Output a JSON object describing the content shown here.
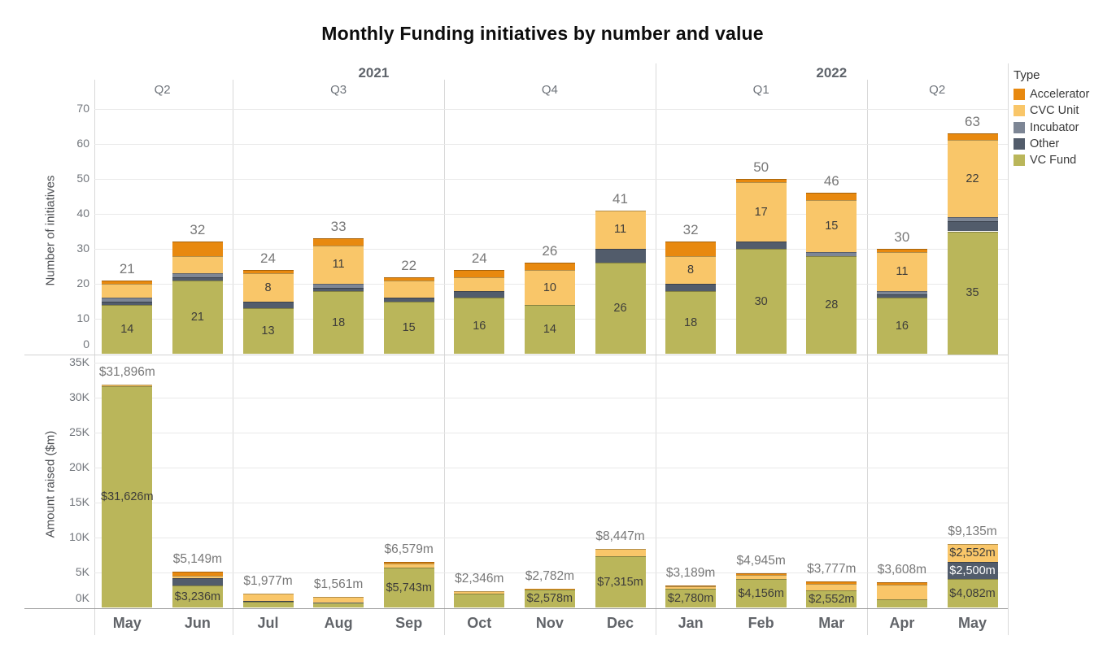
{
  "title": "Monthly Funding initiatives by number and value",
  "legend": {
    "title": "Type",
    "items": [
      {
        "label": "Accelerator",
        "color": "#E8890F"
      },
      {
        "label": "CVC Unit",
        "color": "#F9C669"
      },
      {
        "label": "Incubator",
        "color": "#7D8695"
      },
      {
        "label": "Other",
        "color": "#525C6B"
      },
      {
        "label": "VC Fund",
        "color": "#BAB65A"
      }
    ]
  },
  "x_axis": {
    "months": [
      "May",
      "Jun",
      "Jul",
      "Aug",
      "Sep",
      "Oct",
      "Nov",
      "Dec",
      "Jan",
      "Feb",
      "Mar",
      "Apr",
      "May"
    ],
    "quarters": [
      {
        "label": "Q2",
        "start": 0,
        "end": 2
      },
      {
        "label": "Q3",
        "start": 2,
        "end": 5
      },
      {
        "label": "Q4",
        "start": 5,
        "end": 8
      },
      {
        "label": "Q1",
        "start": 8,
        "end": 11
      },
      {
        "label": "Q2",
        "start": 11,
        "end": 13
      }
    ],
    "years": [
      {
        "label": "2021",
        "start": 0,
        "end": 8
      },
      {
        "label": "2022",
        "start": 8,
        "end": 13
      }
    ]
  },
  "chart_data": [
    {
      "type": "bar",
      "stacked": true,
      "stack_order": "bottom-to-top",
      "ylabel": "Number of initiatives",
      "ylim": [
        0,
        70
      ],
      "yticks": [
        0,
        10,
        20,
        30,
        40,
        50,
        60,
        70
      ],
      "ytick_labels": [
        "0",
        "10",
        "20",
        "30",
        "40",
        "50",
        "60",
        "70"
      ],
      "grid": true,
      "categories": [
        "May",
        "Jun",
        "Jul",
        "Aug",
        "Sep",
        "Oct",
        "Nov",
        "Dec",
        "Jan",
        "Feb",
        "Mar",
        "Apr",
        "May"
      ],
      "series": [
        {
          "name": "VC Fund",
          "values": [
            14,
            21,
            13,
            18,
            15,
            16,
            14,
            26,
            18,
            30,
            28,
            16,
            35
          ]
        },
        {
          "name": "Other",
          "values": [
            1,
            1,
            2,
            1,
            1,
            2,
            0,
            4,
            2,
            2,
            0,
            1,
            3
          ]
        },
        {
          "name": "Incubator",
          "values": [
            1,
            1,
            0,
            1,
            0,
            0,
            0,
            0,
            0,
            0,
            1,
            1,
            1
          ]
        },
        {
          "name": "CVC Unit",
          "values": [
            4,
            5,
            8,
            11,
            5,
            4,
            10,
            11,
            8,
            17,
            15,
            11,
            22
          ]
        },
        {
          "name": "Accelerator",
          "values": [
            1,
            4,
            1,
            2,
            1,
            2,
            2,
            0,
            4,
            1,
            2,
            1,
            2
          ]
        }
      ],
      "totals": [
        21,
        32,
        24,
        33,
        22,
        24,
        26,
        41,
        32,
        50,
        46,
        30,
        63
      ],
      "label_min": 8,
      "value_format": "plain"
    },
    {
      "type": "bar",
      "stacked": true,
      "stack_order": "bottom-to-top",
      "ylabel": "Amount raised ($m)",
      "ylim": [
        0,
        35000
      ],
      "yticks": [
        0,
        5000,
        10000,
        15000,
        20000,
        25000,
        30000,
        35000
      ],
      "ytick_labels": [
        "0K",
        "5K",
        "10K",
        "15K",
        "20K",
        "25K",
        "30K",
        "35K"
      ],
      "grid": true,
      "categories": [
        "May",
        "Jun",
        "Jul",
        "Aug",
        "Sep",
        "Oct",
        "Nov",
        "Dec",
        "Jan",
        "Feb",
        "Mar",
        "Apr",
        "May"
      ],
      "series": [
        {
          "name": "VC Fund",
          "values": [
            31626,
            3236,
            900,
            700,
            5743,
            2000,
            2578,
            7315,
            2780,
            4156,
            2552,
            1200,
            4082
          ]
        },
        {
          "name": "Other",
          "values": [
            0,
            950,
            120,
            60,
            0,
            0,
            0,
            0,
            0,
            0,
            0,
            0,
            2500
          ]
        },
        {
          "name": "Incubator",
          "values": [
            0,
            0,
            0,
            0,
            0,
            0,
            0,
            0,
            0,
            0,
            0,
            0,
            0
          ]
        },
        {
          "name": "CVC Unit",
          "values": [
            270,
            450,
            957,
            801,
            550,
            346,
            100,
            1132,
            250,
            500,
            900,
            2108,
            2552
          ]
        },
        {
          "name": "Accelerator",
          "values": [
            0,
            513,
            0,
            0,
            286,
            0,
            104,
            0,
            159,
            289,
            325,
            300,
            1
          ]
        }
      ],
      "totals": [
        31896,
        5149,
        1977,
        1561,
        6579,
        2346,
        2782,
        8447,
        3189,
        4945,
        3777,
        3608,
        9135
      ],
      "label_min": 2500,
      "value_format": "money"
    }
  ]
}
